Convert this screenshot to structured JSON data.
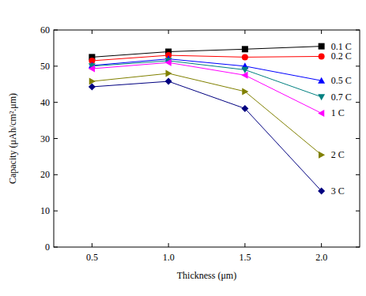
{
  "chart_data": {
    "type": "line",
    "x_label": "Thickness (μm)",
    "y_label": "Capacity (μAh/cm².μm)",
    "x": [
      0.5,
      1.0,
      1.5,
      2.0
    ],
    "xlim": [
      0.25,
      2.25
    ],
    "xticks": [
      {
        "value": 0.5,
        "label": "0.5"
      },
      {
        "value": 1,
        "label": "1.0"
      },
      {
        "value": 1.5,
        "label": "1.5"
      },
      {
        "value": 2,
        "label": "2.0"
      }
    ],
    "ylim": [
      0,
      60
    ],
    "yticks": [
      0,
      10,
      20,
      30,
      40,
      50,
      60
    ],
    "grid": false,
    "series": [
      {
        "name": "0.1 C",
        "color": "#000000",
        "marker": "square",
        "values": [
          52.5,
          54,
          54.7,
          55.5
        ]
      },
      {
        "name": "0.2 C",
        "color": "#ff0000",
        "marker": "circle",
        "values": [
          51.5,
          53,
          52.5,
          52.7
        ]
      },
      {
        "name": "0.5 C",
        "color": "#0000ff",
        "marker": "triangle-up",
        "values": [
          50.2,
          52,
          50,
          46
        ]
      },
      {
        "name": "0.7 C",
        "color": "#008080",
        "marker": "triangle-down",
        "values": [
          50,
          51.5,
          49,
          41.5
        ]
      },
      {
        "name": "1 C",
        "color": "#ff00ff",
        "marker": "triangle-left",
        "values": [
          49.3,
          51,
          47.5,
          37
        ]
      },
      {
        "name": "2 C",
        "color": "#808000",
        "marker": "triangle-right",
        "values": [
          45.8,
          48,
          43,
          25.5
        ]
      },
      {
        "name": "3 C",
        "color": "#000080",
        "marker": "diamond",
        "values": [
          44.3,
          45.8,
          38.3,
          15.5
        ]
      }
    ]
  }
}
